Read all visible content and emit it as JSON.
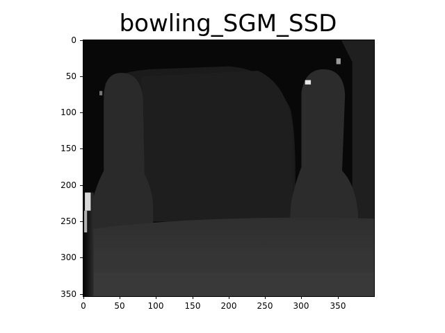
{
  "figure": {
    "title": "bowling_SGM_SSD",
    "image_width": 400,
    "image_height": 353,
    "colormap": "gray"
  },
  "axes": {
    "x_ticks": [
      0,
      50,
      100,
      150,
      200,
      250,
      300,
      350
    ],
    "y_ticks": [
      0,
      50,
      100,
      150,
      200,
      250,
      300,
      350
    ],
    "x_tick_labels": [
      "0",
      "50",
      "100",
      "150",
      "200",
      "250",
      "300",
      "350"
    ],
    "y_tick_labels": [
      "0",
      "50",
      "100",
      "150",
      "200",
      "250",
      "300",
      "350"
    ]
  }
}
